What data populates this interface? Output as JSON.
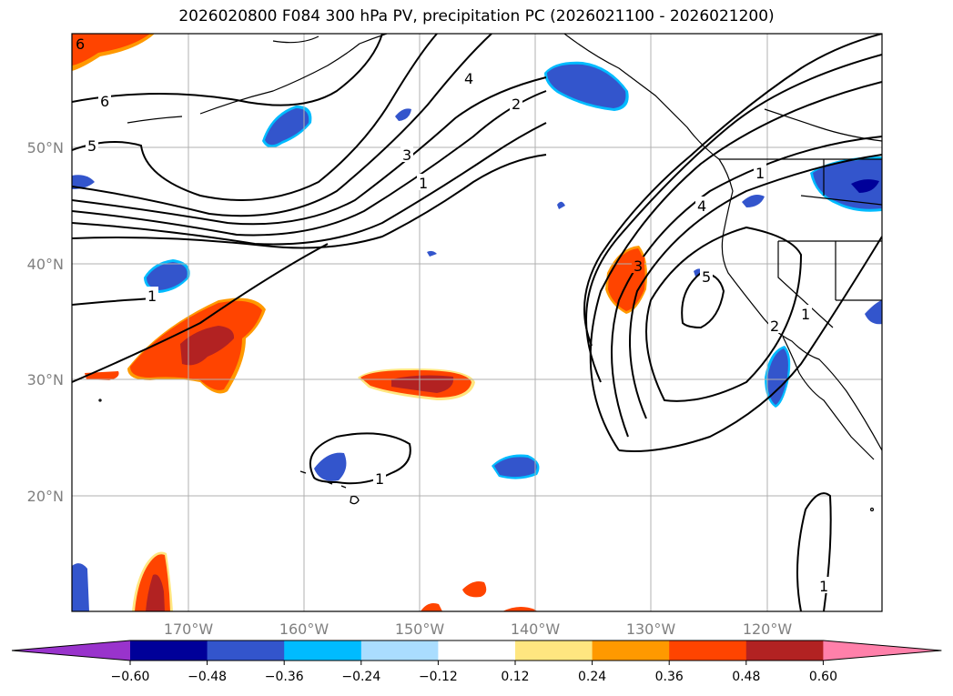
{
  "title": "2026020800 F084 300 hPa PV, precipitation PC (2026021100 - 2026021200)",
  "map": {
    "lat_labels": [
      "50°N",
      "40°N",
      "30°N",
      "20°N"
    ],
    "lon_labels": [
      "170°W",
      "160°W",
      "150°W",
      "140°W",
      "130°W",
      "120°W"
    ],
    "gridlines": true,
    "contour_labels": [
      "6",
      "6",
      "5",
      "4",
      "3",
      "2",
      "1",
      "1",
      "1",
      "3",
      "4",
      "5",
      "2",
      "1",
      "1",
      "1"
    ]
  },
  "colorbar": {
    "ticks": [
      "−0.60",
      "−0.48",
      "−0.36",
      "−0.24",
      "−0.12",
      "0.12",
      "0.24",
      "0.36",
      "0.48",
      "0.60"
    ],
    "colors": [
      "#9933cc",
      "#000099",
      "#3355cc",
      "#00bbff",
      "#aaddff",
      "#ffffff",
      "#ffe680",
      "#ff9900",
      "#ff4400",
      "#b22222",
      "#ff80aa"
    ],
    "extend": "both"
  },
  "fill_colors": {
    "land_outline": "#000000",
    "negative_mid": "#3355cc",
    "negative_strong": "#000099",
    "negative_light": "#00bbff",
    "positive_mid": "#ff4400",
    "positive_strong": "#b22222",
    "positive_light": "#ffe680",
    "positive_edge": "#ff9900"
  }
}
